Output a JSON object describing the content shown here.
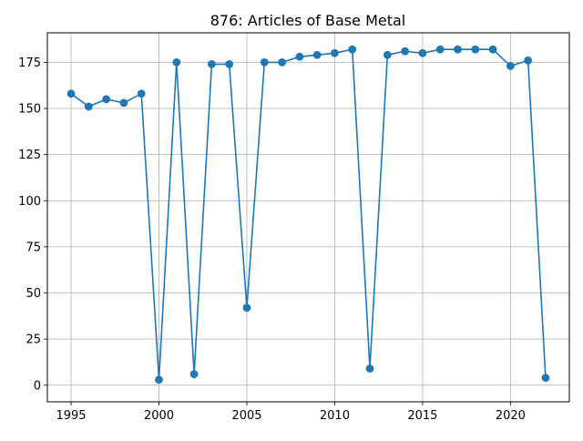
{
  "chart_data": {
    "type": "line",
    "title": "876: Articles of Base Metal",
    "xlabel": "",
    "ylabel": "",
    "x": [
      1995,
      1996,
      1997,
      1998,
      1999,
      2000,
      2001,
      2002,
      2003,
      2004,
      2005,
      2006,
      2007,
      2008,
      2009,
      2010,
      2011,
      2012,
      2013,
      2014,
      2015,
      2016,
      2017,
      2018,
      2019,
      2020,
      2021,
      2022
    ],
    "series": [
      {
        "values": [
          158,
          151,
          155,
          153,
          158,
          3,
          175,
          6,
          174,
          174,
          42,
          175,
          175,
          178,
          179,
          180,
          182,
          9,
          179,
          181,
          180,
          182,
          182,
          182,
          182,
          173,
          176,
          4
        ],
        "color": "#1f77b4"
      }
    ],
    "xlim": [
      1993.65,
      2023.35
    ],
    "ylim": [
      -9.0,
      191.0
    ],
    "xticks": [
      "1995",
      "2000",
      "2005",
      "2010",
      "2015",
      "2020"
    ],
    "yticks": [
      "0",
      "25",
      "50",
      "75",
      "100",
      "125",
      "150",
      "175"
    ],
    "grid": true,
    "marker": "circle"
  }
}
